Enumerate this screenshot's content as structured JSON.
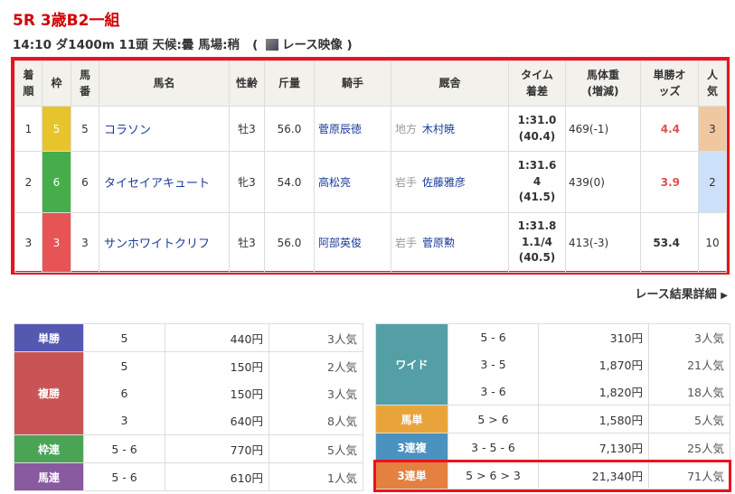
{
  "header": {
    "title": "5R 3歳B2一組",
    "info": "14:10 ダ1400m 11頭  天候:曇 馬場:稍",
    "video_open": "(",
    "video_label": "レース映像",
    "video_close": ")"
  },
  "results": {
    "columns": [
      "着順",
      "枠",
      "馬番",
      "馬名",
      "性齢",
      "斤量",
      "騎手",
      "厩舎",
      "タイム着差",
      "馬体重(増減)",
      "単勝オッズ",
      "人気"
    ],
    "rows": [
      {
        "rank": "1",
        "frame": "5",
        "num": "5",
        "horse": "コラソン",
        "sexage": "牡3",
        "weight": "56.0",
        "jockey": "菅原辰徳",
        "region": "地方",
        "trainer": "木村暁",
        "time": "1:31.0",
        "margin": "",
        "last": "(40.4)",
        "body": "469(-1)",
        "odds": "4.4",
        "pop": "3"
      },
      {
        "rank": "2",
        "frame": "6",
        "num": "6",
        "horse": "タイセイアキュート",
        "sexage": "牝3",
        "weight": "54.0",
        "jockey": "高松亮",
        "region": "岩手",
        "trainer": "佐藤雅彦",
        "time": "1:31.6",
        "margin": "4",
        "last": "(41.5)",
        "body": "439(0)",
        "odds": "3.9",
        "pop": "2"
      },
      {
        "rank": "3",
        "frame": "3",
        "num": "3",
        "horse": "サンホワイトクリフ",
        "sexage": "牡3",
        "weight": "56.0",
        "jockey": "阿部英俊",
        "region": "岩手",
        "trainer": "菅原勲",
        "time": "1:31.8",
        "margin": "1.1/4",
        "last": "(40.5)",
        "body": "413(-3)",
        "odds": "53.4",
        "pop": "10"
      }
    ]
  },
  "detail_link": "レース結果詳細",
  "payouts_left": [
    {
      "label": "単勝",
      "color": "#5458b0",
      "items": [
        [
          "5",
          "440円",
          "3人気"
        ]
      ]
    },
    {
      "label": "複勝",
      "color": "#c95455",
      "items": [
        [
          "5",
          "150円",
          "2人気"
        ],
        [
          "6",
          "150円",
          "3人気"
        ],
        [
          "3",
          "640円",
          "8人気"
        ]
      ]
    },
    {
      "label": "枠連",
      "color": "#4ba456",
      "items": [
        [
          "5 - 6",
          "770円",
          "5人気"
        ]
      ]
    },
    {
      "label": "馬連",
      "color": "#8a5aa0",
      "items": [
        [
          "5 - 6",
          "610円",
          "1人気"
        ]
      ]
    }
  ],
  "payouts_right": [
    {
      "label": "ワイド",
      "color": "#549fa6",
      "items": [
        [
          "5 - 6",
          "310円",
          "3人気"
        ],
        [
          "3 - 5",
          "1,870円",
          "21人気"
        ],
        [
          "3 - 6",
          "1,820円",
          "18人気"
        ]
      ]
    },
    {
      "label": "馬単",
      "color": "#e8a43a",
      "items": [
        [
          "5 > 6",
          "1,580円",
          "5人気"
        ]
      ]
    },
    {
      "label": "3連複",
      "color": "#4c92c0",
      "items": [
        [
          "3 - 5 - 6",
          "7,130円",
          "25人気"
        ]
      ]
    },
    {
      "label": "3連単",
      "color": "#e48040",
      "items": [
        [
          "5 > 6 > 3",
          "21,340円",
          "71人気"
        ]
      ]
    }
  ]
}
